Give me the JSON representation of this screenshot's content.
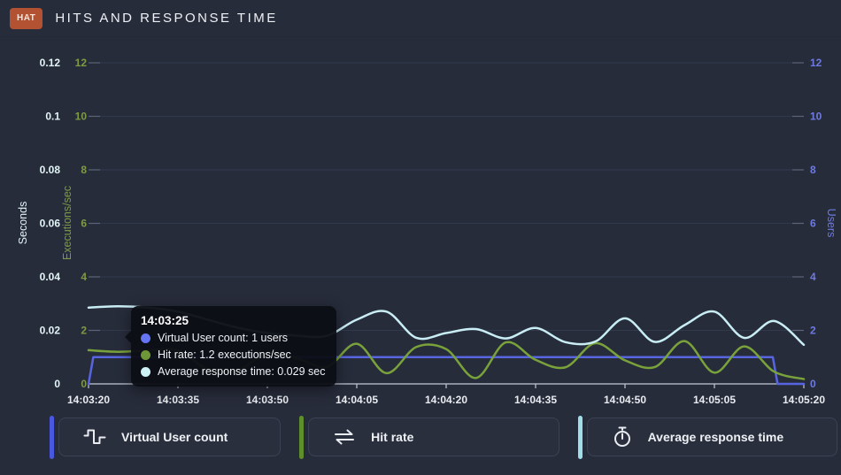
{
  "header": {
    "badge": "HAT",
    "title": "HITS AND RESPONSE TIME"
  },
  "axes": {
    "left_seconds": {
      "title": "Seconds",
      "color": "#e2f4f6",
      "max": 0.12,
      "ticks": [
        "0",
        "0.02",
        "0.04",
        "0.06",
        "0.08",
        "0.1",
        "0.12"
      ]
    },
    "left_executions": {
      "title": "Executions/sec",
      "color": "#7e9a44",
      "max": 12,
      "ticks": [
        "0",
        "2",
        "4",
        "6",
        "8",
        "10",
        "12"
      ]
    },
    "right_users": {
      "title": "Users",
      "color": "#6e7ae0",
      "max": 12,
      "ticks": [
        "0",
        "2",
        "4",
        "6",
        "8",
        "10",
        "12"
      ]
    },
    "x": {
      "color": "#e9ecf0",
      "ticks": [
        "14:03:20",
        "14:03:35",
        "14:03:50",
        "14:04:05",
        "14:04:20",
        "14:04:35",
        "14:04:50",
        "14:05:05",
        "14:05:20"
      ]
    }
  },
  "chart_data": {
    "type": "line",
    "title": "Hits and Response Time",
    "x_axis": "time",
    "x_start_label": "14:03:20",
    "x_end_label": "14:05:20",
    "x_range_seconds": [
      0,
      120
    ],
    "x_seconds": [
      0,
      5,
      10,
      15,
      20,
      25,
      30,
      35,
      40,
      45,
      50,
      55,
      60,
      65,
      70,
      75,
      80,
      85,
      90,
      95,
      100,
      105,
      110,
      115,
      120
    ],
    "grid": true,
    "legend_position": "bottom",
    "series": [
      {
        "name": "Virtual User count",
        "axis": "users",
        "unit": "users",
        "color": "#5865e0",
        "step": true,
        "points": [
          [
            0,
            0
          ],
          [
            0.8,
            1
          ],
          [
            114.8,
            1
          ],
          [
            115.6,
            0
          ],
          [
            120,
            0
          ]
        ]
      },
      {
        "name": "Hit rate",
        "axis": "executions",
        "unit": "executions/sec",
        "color": "#7aa23b",
        "values": [
          1.26,
          1.2,
          1.25,
          1.25,
          0.55,
          0.5,
          1.15,
          0.95,
          0.64,
          1.5,
          0.4,
          1.38,
          1.3,
          0.22,
          1.55,
          0.9,
          0.62,
          1.52,
          0.88,
          0.63,
          1.6,
          0.42,
          1.4,
          0.46,
          0.18
        ]
      },
      {
        "name": "Average response time",
        "axis": "seconds",
        "unit": "sec",
        "color": "#c9edf4",
        "values": [
          0.0285,
          0.029,
          0.0285,
          0.027,
          0.024,
          0.021,
          0.019,
          0.018,
          0.018,
          0.024,
          0.027,
          0.0172,
          0.019,
          0.0205,
          0.017,
          0.0209,
          0.0156,
          0.0158,
          0.0245,
          0.0157,
          0.022,
          0.027,
          0.0172,
          0.0235,
          0.0146
        ]
      }
    ]
  },
  "tooltip": {
    "time": "14:03:25",
    "rows": [
      {
        "text": "Virtual User count: 1 users",
        "color": "#6574f0"
      },
      {
        "text": "Hit rate: 1.2 executions/sec",
        "color": "#6e9838"
      },
      {
        "text": "Average response time: 0.029 sec",
        "color": "#ccf2f5"
      }
    ]
  },
  "legend": [
    {
      "label": "Virtual User count",
      "accent": "#4a57e0",
      "icon": "square-wave-icon"
    },
    {
      "label": "Hit rate",
      "accent": "#5f8f2a",
      "icon": "swap-arrows-icon"
    },
    {
      "label": "Average response time",
      "accent": "#9fdde8",
      "icon": "stopwatch-icon"
    }
  ],
  "colors": {
    "background": "#272c3b",
    "badge": "#b35232",
    "grid_line": "#313a4d",
    "axis_line": "#c3c9d5",
    "edge_tick": "#5b6478",
    "tooltip_bg": "#0c0f16"
  }
}
